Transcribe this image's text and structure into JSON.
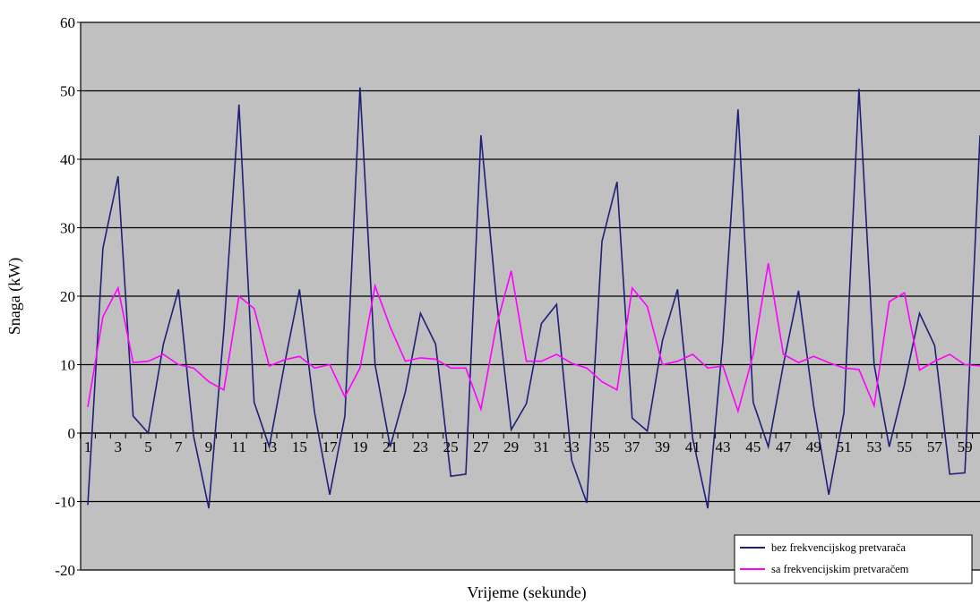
{
  "chart_data": {
    "type": "line",
    "xlabel": "Vrijeme (sekunde)",
    "ylabel": "Snaga (kW)",
    "ylim": [
      -20,
      60
    ],
    "yticks": [
      -20,
      -10,
      0,
      10,
      20,
      30,
      40,
      50,
      60
    ],
    "xlim": [
      1,
      60
    ],
    "xticks": [
      1,
      3,
      5,
      7,
      9,
      11,
      13,
      15,
      17,
      19,
      21,
      23,
      25,
      27,
      29,
      31,
      33,
      35,
      37,
      39,
      41,
      43,
      45,
      47,
      49,
      51,
      53,
      55,
      57,
      59
    ],
    "grid": "horizontal",
    "legend_position": "bottom-right",
    "plot_background": "#c0c0c0",
    "series": [
      {
        "name": "bez frekvencijskog pretvarača",
        "color": "#1f1f7a",
        "x": [
          1,
          2,
          3,
          4,
          5,
          6,
          7,
          8,
          9,
          10,
          11,
          12,
          13,
          14,
          15,
          16,
          17,
          18,
          19,
          20,
          21,
          22,
          23,
          24,
          25,
          26,
          27,
          28,
          29,
          30,
          31,
          32,
          33,
          34,
          35,
          36,
          37,
          38,
          39,
          40,
          41,
          42,
          43,
          44,
          45,
          46,
          47,
          48,
          49,
          50,
          51,
          52,
          53,
          54,
          55,
          56,
          57,
          58,
          59,
          60
        ],
        "values": [
          -10.5,
          27,
          37.5,
          2.5,
          0,
          13,
          21,
          -0.5,
          -11,
          15,
          48,
          4.5,
          -2,
          10,
          21,
          3,
          -9,
          2.5,
          50.5,
          10,
          -2,
          6,
          17.5,
          13,
          -6.3,
          -6,
          43.5,
          20,
          0.5,
          4.3,
          16,
          18.8,
          -4,
          -10.2,
          28,
          36.7,
          2.2,
          0.3,
          13.5,
          21,
          -0.8,
          -11,
          13.5,
          47.3,
          4.5,
          -2,
          10,
          20.8,
          4,
          -9,
          3,
          50.3,
          10,
          -2,
          7,
          17.5,
          12.8,
          -6,
          -5.8,
          43.5
        ]
      },
      {
        "name": "sa frekvencijskim pretvaračem",
        "color": "#ff00ff",
        "x": [
          1,
          2,
          3,
          4,
          5,
          6,
          7,
          8,
          9,
          10,
          11,
          12,
          13,
          14,
          15,
          16,
          17,
          18,
          19,
          20,
          21,
          22,
          23,
          24,
          25,
          26,
          27,
          28,
          29,
          30,
          31,
          32,
          33,
          34,
          35,
          36,
          37,
          38,
          39,
          40,
          41,
          42,
          43,
          44,
          45,
          46,
          47,
          48,
          49,
          50,
          51,
          52,
          53,
          54,
          55,
          56,
          57,
          58,
          59,
          60
        ],
        "values": [
          3.8,
          17,
          21.2,
          10.3,
          10.5,
          11.5,
          10,
          9.5,
          7.5,
          6.3,
          20,
          18.2,
          9.8,
          10.7,
          11.2,
          9.5,
          10,
          5.3,
          9.5,
          21.5,
          15.5,
          10.5,
          11,
          10.8,
          9.5,
          9.5,
          3.5,
          15.5,
          23.7,
          10.5,
          10.5,
          11.5,
          10.2,
          9.5,
          7.5,
          6.3,
          21.2,
          18.5,
          10,
          10.5,
          11.5,
          9.5,
          9.8,
          3.2,
          11.5,
          24.8,
          11.5,
          10.3,
          11.2,
          10.3,
          9.5,
          9.3,
          4,
          19.2,
          20.5,
          9.2,
          10.5,
          11.5,
          10,
          9.8
        ]
      }
    ]
  }
}
